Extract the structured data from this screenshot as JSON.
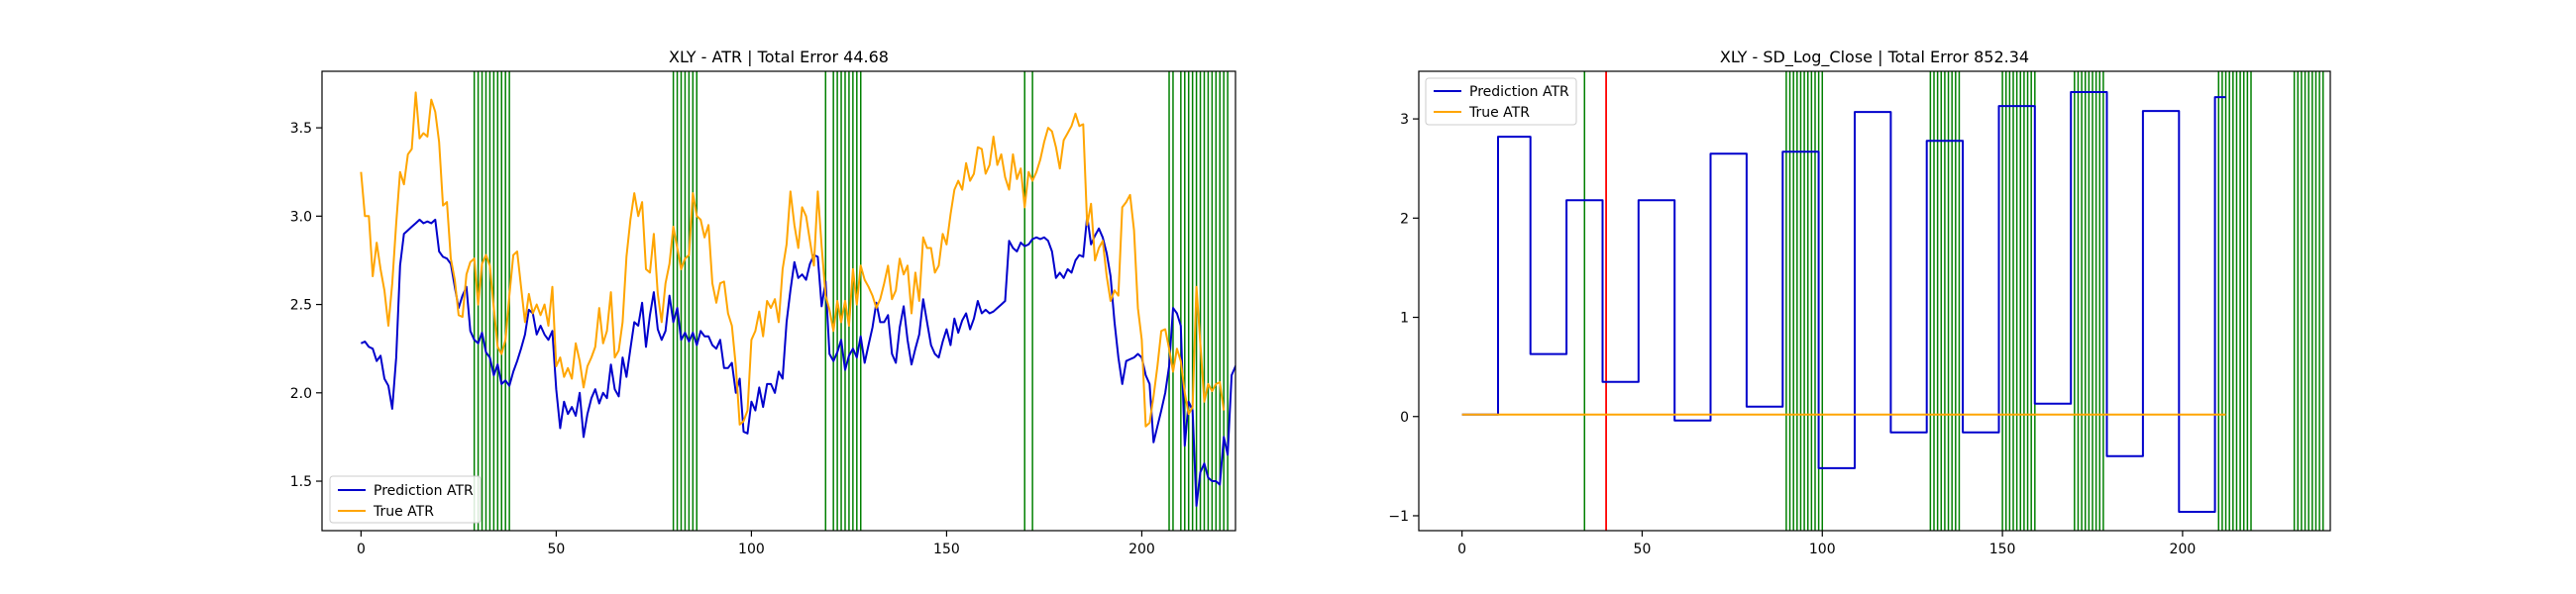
{
  "figure": {
    "background": "#ffffff"
  },
  "chart_data": [
    {
      "type": "line",
      "title": "XLY - ATR | Total Error 44.68",
      "xlabel": "",
      "ylabel": "",
      "xlim": [
        -10,
        224
      ],
      "ylim": [
        1.22,
        3.82
      ],
      "xticks": [
        0,
        50,
        100,
        150,
        200
      ],
      "yticks": [
        1.5,
        2.0,
        2.5,
        3.0,
        3.5
      ],
      "grid": false,
      "legend": {
        "placement": "lower-left",
        "entries": [
          "Prediction ATR",
          "True ATR"
        ]
      },
      "series": [
        {
          "name": "Prediction ATR",
          "color": "#0000cc",
          "x_start": 0,
          "values": [
            2.28,
            2.29,
            2.26,
            2.25,
            2.18,
            2.21,
            2.08,
            2.04,
            1.91,
            2.2,
            2.72,
            2.9,
            2.92,
            2.94,
            2.96,
            2.98,
            2.96,
            2.97,
            2.96,
            2.98,
            2.8,
            2.77,
            2.76,
            2.73,
            2.6,
            2.48,
            2.55,
            2.6,
            2.35,
            2.3,
            2.28,
            2.34,
            2.23,
            2.2,
            2.1,
            2.16,
            2.05,
            2.07,
            2.04,
            2.12,
            2.18,
            2.25,
            2.33,
            2.47,
            2.45,
            2.33,
            2.38,
            2.33,
            2.3,
            2.35,
            2.02,
            1.8,
            1.95,
            1.88,
            1.92,
            1.87,
            2.0,
            1.75,
            1.88,
            1.97,
            2.02,
            1.94,
            2.0,
            1.97,
            2.16,
            2.02,
            1.98,
            2.2,
            2.09,
            2.25,
            2.4,
            2.38,
            2.51,
            2.26,
            2.44,
            2.57,
            2.36,
            2.3,
            2.35,
            2.55,
            2.4,
            2.48,
            2.3,
            2.34,
            2.29,
            2.34,
            2.27,
            2.35,
            2.32,
            2.32,
            2.27,
            2.25,
            2.3,
            2.14,
            2.14,
            2.17,
            2.0,
            2.08,
            1.78,
            1.77,
            1.95,
            1.9,
            2.03,
            1.92,
            2.05,
            2.05,
            2.0,
            2.12,
            2.08,
            2.4,
            2.58,
            2.74,
            2.65,
            2.67,
            2.64,
            2.73,
            2.78,
            2.77,
            2.49,
            2.63,
            2.22,
            2.18,
            2.23,
            2.3,
            2.13,
            2.21,
            2.25,
            2.2,
            2.32,
            2.17,
            2.27,
            2.37,
            2.51,
            2.4,
            2.4,
            2.44,
            2.22,
            2.17,
            2.37,
            2.49,
            2.3,
            2.16,
            2.25,
            2.33,
            2.53,
            2.4,
            2.27,
            2.22,
            2.2,
            2.29,
            2.36,
            2.27,
            2.42,
            2.34,
            2.41,
            2.45,
            2.36,
            2.42,
            2.52,
            2.45,
            2.47,
            2.45,
            2.46,
            2.48,
            2.5,
            2.52,
            2.86,
            2.82,
            2.8,
            2.85,
            2.83,
            2.84,
            2.87,
            2.88,
            2.87,
            2.88,
            2.86,
            2.8,
            2.65,
            2.68,
            2.65,
            2.7,
            2.68,
            2.75,
            2.78,
            2.77,
            3.0,
            2.84,
            2.89,
            2.93,
            2.88,
            2.79,
            2.66,
            2.4,
            2.2,
            2.05,
            2.18,
            2.19,
            2.2,
            2.22,
            2.2,
            2.1,
            2.05,
            1.72,
            1.81,
            1.9,
            2.0,
            2.15,
            2.48,
            2.45,
            2.38,
            1.7,
            1.95,
            1.9,
            1.36,
            1.55,
            1.6,
            1.52,
            1.5,
            1.5,
            1.48,
            1.75,
            1.65,
            2.1,
            2.15,
            2.2,
            2.18,
            2.2,
            2.0
          ]
        },
        {
          "name": "True ATR",
          "color": "#ffa500",
          "x_start": 0,
          "values": [
            3.25,
            3.0,
            3.0,
            2.66,
            2.85,
            2.7,
            2.58,
            2.38,
            2.62,
            2.96,
            3.25,
            3.18,
            3.35,
            3.38,
            3.7,
            3.44,
            3.47,
            3.45,
            3.66,
            3.59,
            3.42,
            3.06,
            3.08,
            2.76,
            2.64,
            2.44,
            2.43,
            2.67,
            2.74,
            2.76,
            2.5,
            2.73,
            2.78,
            2.72,
            2.48,
            2.26,
            2.22,
            2.3,
            2.55,
            2.78,
            2.8,
            2.6,
            2.4,
            2.56,
            2.45,
            2.5,
            2.44,
            2.5,
            2.38,
            2.6,
            2.15,
            2.2,
            2.09,
            2.14,
            2.08,
            2.28,
            2.18,
            2.03,
            2.15,
            2.2,
            2.26,
            2.48,
            2.28,
            2.35,
            2.57,
            2.2,
            2.24,
            2.4,
            2.77,
            2.98,
            3.13,
            3.0,
            3.08,
            2.7,
            2.68,
            2.9,
            2.56,
            2.4,
            2.62,
            2.73,
            2.94,
            2.82,
            2.7,
            2.76,
            2.78,
            3.13,
            3.0,
            2.98,
            2.88,
            2.95,
            2.62,
            2.51,
            2.62,
            2.63,
            2.45,
            2.38,
            2.15,
            1.82,
            1.84,
            1.9,
            2.3,
            2.35,
            2.46,
            2.32,
            2.52,
            2.48,
            2.53,
            2.4,
            2.7,
            2.84,
            3.14,
            2.95,
            2.82,
            3.05,
            3.0,
            2.86,
            2.72,
            3.14,
            2.83,
            2.55,
            2.47,
            2.35,
            2.52,
            2.4,
            2.52,
            2.38,
            2.7,
            2.5,
            2.72,
            2.64,
            2.6,
            2.55,
            2.48,
            2.53,
            2.62,
            2.72,
            2.53,
            2.58,
            2.76,
            2.67,
            2.72,
            2.45,
            2.68,
            2.52,
            2.88,
            2.82,
            2.82,
            2.68,
            2.72,
            2.9,
            2.84,
            3.01,
            3.15,
            3.2,
            3.15,
            3.3,
            3.2,
            3.24,
            3.39,
            3.38,
            3.24,
            3.29,
            3.45,
            3.29,
            3.35,
            3.22,
            3.15,
            3.35,
            3.21,
            3.27,
            3.05,
            3.25,
            3.2,
            3.25,
            3.32,
            3.42,
            3.5,
            3.48,
            3.39,
            3.27,
            3.43,
            3.47,
            3.51,
            3.58,
            3.51,
            3.52,
            2.95,
            3.07,
            2.75,
            2.82,
            2.86,
            2.66,
            2.52,
            2.58,
            2.55,
            3.05,
            3.08,
            3.12,
            2.92,
            2.48,
            2.3,
            1.81,
            1.83,
            1.98,
            2.15,
            2.35,
            2.36,
            2.25,
            2.12,
            2.25,
            2.18,
            2.0,
            1.88,
            1.92,
            2.6,
            2.28,
            1.95,
            2.05,
            2.01,
            2.05,
            2.06,
            1.9
          ]
        }
      ],
      "markers": {
        "green": [
          29,
          30,
          31,
          32,
          33,
          34,
          35,
          36,
          37,
          38,
          80,
          81,
          82,
          83,
          84,
          85,
          86,
          119,
          121,
          122,
          123,
          124,
          125,
          126,
          127,
          128,
          170,
          172,
          207,
          208,
          210,
          211,
          212,
          213,
          214,
          215,
          216,
          217,
          218,
          219,
          220,
          221,
          222
        ],
        "red": []
      }
    },
    {
      "type": "line",
      "title": "XLY - SD_Log_Close | Total Error 852.34",
      "xlabel": "",
      "ylabel": "",
      "xlim": [
        -12,
        241
      ],
      "ylim": [
        -1.15,
        3.48
      ],
      "xticks": [
        0,
        50,
        100,
        150,
        200
      ],
      "yticks": [
        -1,
        0,
        1,
        2,
        3
      ],
      "grid": false,
      "legend": {
        "placement": "upper-left",
        "entries": [
          "Prediction ATR",
          "True ATR"
        ]
      },
      "series": [
        {
          "name": "Prediction ATR",
          "color": "#0000cc",
          "steps": [
            [
              0,
              10,
              0.02
            ],
            [
              10,
              19,
              2.82
            ],
            [
              19,
              29,
              0.63
            ],
            [
              29,
              39,
              2.18
            ],
            [
              39,
              49,
              0.35
            ],
            [
              49,
              59,
              2.18
            ],
            [
              59,
              69,
              -0.04
            ],
            [
              69,
              79,
              2.65
            ],
            [
              79,
              89,
              0.1
            ],
            [
              89,
              99,
              2.67
            ],
            [
              99,
              109,
              -0.52
            ],
            [
              109,
              119,
              3.07
            ],
            [
              119,
              129,
              -0.16
            ],
            [
              129,
              139,
              2.78
            ],
            [
              139,
              149,
              -0.16
            ],
            [
              149,
              159,
              3.13
            ],
            [
              159,
              169,
              0.13
            ],
            [
              169,
              179,
              3.27
            ],
            [
              179,
              189,
              -0.4
            ],
            [
              189,
              199,
              3.08
            ],
            [
              199,
              209,
              -0.96
            ],
            [
              209,
              212,
              3.22
            ]
          ]
        },
        {
          "name": "True ATR",
          "color": "#ffa500",
          "constant": 0.02,
          "x_range": [
            0,
            212
          ]
        }
      ],
      "markers": {
        "green": [
          34,
          90,
          91,
          92,
          93,
          94,
          95,
          96,
          97,
          98,
          99,
          100,
          130,
          131,
          132,
          133,
          134,
          135,
          136,
          137,
          138,
          150,
          151,
          152,
          153,
          154,
          155,
          156,
          157,
          158,
          159,
          170,
          171,
          172,
          173,
          174,
          175,
          176,
          177,
          178,
          210,
          211,
          212,
          213,
          214,
          215,
          216,
          217,
          218,
          219,
          231,
          232,
          233,
          234,
          235,
          236,
          237,
          238,
          239
        ],
        "red": [
          40
        ]
      }
    }
  ]
}
